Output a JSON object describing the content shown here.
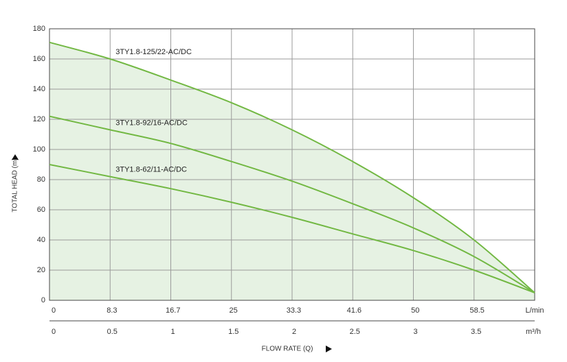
{
  "chart_data": {
    "type": "line",
    "x_label": "FLOW RATE (Q)",
    "y_label": "TOTAL HEAD (m)",
    "x_unit": "m³/h",
    "x2_unit": "L/min",
    "xlim": [
      0,
      4
    ],
    "xticks": [
      0,
      0.5,
      1,
      1.5,
      2,
      2.5,
      3,
      3.5
    ],
    "x2lim": [
      0,
      66.7
    ],
    "x2ticks": [
      0,
      8.3,
      16.7,
      25,
      33.3,
      41.6,
      50,
      58.5
    ],
    "ylim": [
      0,
      180
    ],
    "yticks": [
      0,
      20,
      40,
      60,
      80,
      100,
      120,
      140,
      160,
      180
    ],
    "grid": true,
    "area_color": "#e6f2e3",
    "x": [
      0,
      0.5,
      1,
      1.5,
      2,
      2.5,
      3,
      3.5,
      4
    ],
    "series": [
      {
        "name": "3TY1.8-125/22-AC/DC",
        "color": "#72b843",
        "values": [
          171,
          160,
          146,
          131,
          113,
          92,
          68,
          40,
          5
        ]
      },
      {
        "name": "3TY1.8-92/16-AC/DC",
        "color": "#72b843",
        "values": [
          122,
          113,
          104,
          92,
          79,
          64,
          48,
          29,
          5
        ]
      },
      {
        "name": "3TY1.8-62/11-AC/DC",
        "color": "#72b843",
        "values": [
          90,
          82,
          74,
          65,
          55,
          44,
          33,
          20,
          5
        ]
      }
    ]
  }
}
